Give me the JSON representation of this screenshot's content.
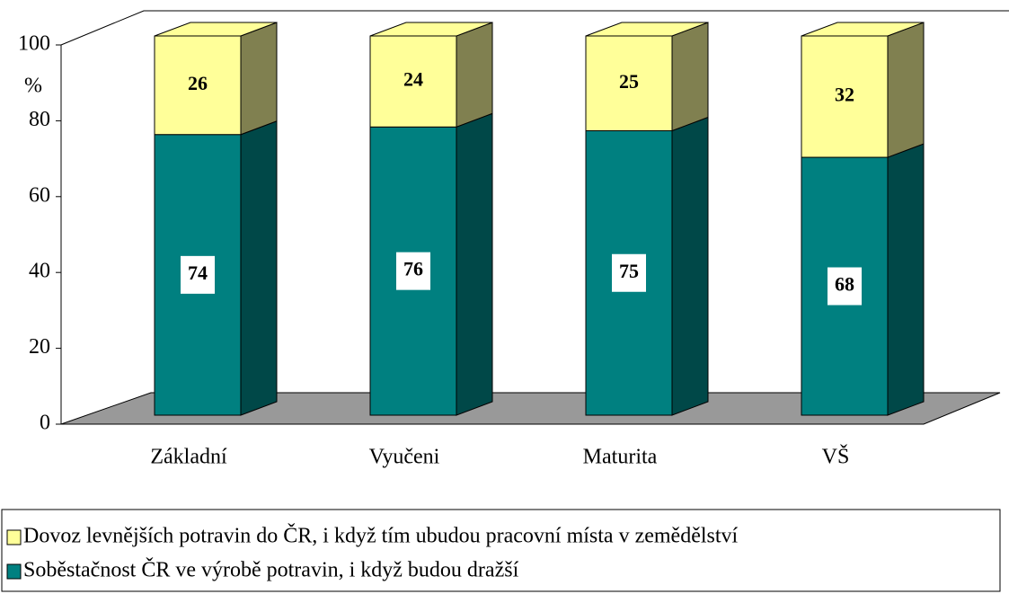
{
  "chart_data": {
    "type": "bar3d_stacked",
    "y_label": "%",
    "categories": [
      "Základní",
      "Vyučeni",
      "Maturita",
      "VŠ"
    ],
    "series": [
      {
        "name": "Soběstačnost ČR ve výrobě potravin, i když budou dražší",
        "color": "#008080",
        "side_color": "#004848",
        "values": [
          74,
          76,
          75,
          68
        ]
      },
      {
        "name": "Dovoz levnějších potravin do ČR, i když tím ubudou pracovní místa v zemědělství",
        "color": "#ffff99",
        "side_color": "#808050",
        "values": [
          26,
          24,
          25,
          32
        ]
      }
    ],
    "ylim": [
      0,
      100
    ],
    "yticks": [
      0,
      20,
      40,
      60,
      80,
      100
    ]
  }
}
